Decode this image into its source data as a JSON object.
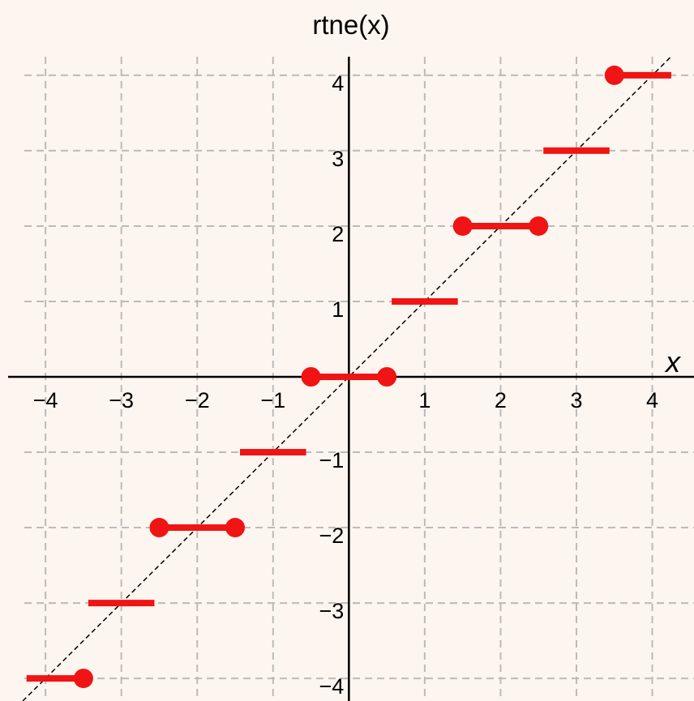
{
  "chart_data": {
    "type": "step-segments",
    "title": "rtne(x)",
    "xlabel": "x",
    "xlim": [
      -4.6,
      4.55
    ],
    "ylim": [
      -4.3,
      4.3
    ],
    "xticks": [
      {
        "value": -4,
        "label": "−4"
      },
      {
        "value": -3,
        "label": "−3"
      },
      {
        "value": -2,
        "label": "−2"
      },
      {
        "value": -1,
        "label": "−1"
      },
      1,
      2,
      3,
      4
    ],
    "yticks": [
      {
        "value": -4,
        "label": "−4"
      },
      {
        "value": -3,
        "label": "−3"
      },
      {
        "value": -2,
        "label": "−2"
      },
      {
        "value": -1,
        "label": "−1"
      },
      1,
      2,
      3,
      4
    ],
    "grid": true,
    "color": "#f01414",
    "diagonal": {
      "x": [
        -4.3,
        4.25
      ],
      "y": [
        -4.3,
        4.25
      ]
    },
    "segments": [
      {
        "x": [
          -4.25,
          -3.5
        ],
        "y": -4,
        "closed": [
          -3.5
        ]
      },
      {
        "x": [
          -3.5,
          -2.5
        ],
        "y": -3,
        "closed": []
      },
      {
        "x": [
          -2.5,
          -1.5
        ],
        "y": -2,
        "closed": [
          -2.5,
          -1.5
        ]
      },
      {
        "x": [
          -1.5,
          -0.5
        ],
        "y": -1,
        "closed": []
      },
      {
        "x": [
          -0.5,
          0.5
        ],
        "y": 0,
        "closed": [
          -0.5,
          0.5
        ]
      },
      {
        "x": [
          0.5,
          1.5
        ],
        "y": 1,
        "closed": []
      },
      {
        "x": [
          1.5,
          2.5
        ],
        "y": 2,
        "closed": [
          1.5,
          2.5
        ]
      },
      {
        "x": [
          2.5,
          3.5
        ],
        "y": 3,
        "closed": []
      },
      {
        "x": [
          3.5,
          4.25
        ],
        "y": 4,
        "closed": [
          3.5
        ]
      }
    ]
  }
}
